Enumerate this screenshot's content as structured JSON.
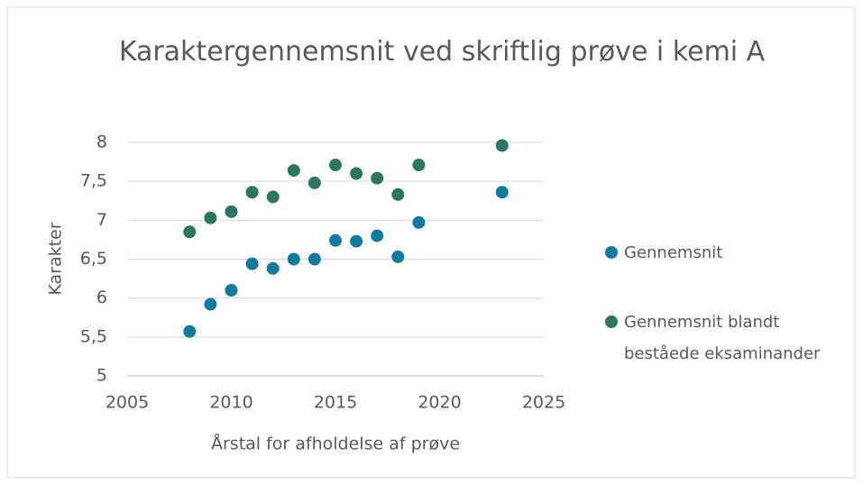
{
  "chart_data": {
    "type": "scatter",
    "title": "Karaktergennemsnit ved skriftlig prøve i kemi A",
    "xlabel": "Årstal for afholdelse af prøve",
    "ylabel": "Karakter",
    "xlim": [
      2005,
      2025
    ],
    "xticks": [
      2005,
      2010,
      2015,
      2020,
      2025
    ],
    "ylim": [
      5,
      8
    ],
    "yticks": [
      5,
      {
        "value": 5.5,
        "label": "5,5"
      },
      6,
      {
        "value": 6.5,
        "label": "6,5"
      },
      7,
      {
        "value": 7.5,
        "label": "7,5"
      },
      8
    ],
    "grid": true,
    "legend": "right",
    "series": [
      {
        "name": "Gennemsnit",
        "color": "#127a9c",
        "x": [
          2008,
          2009,
          2010,
          2011,
          2012,
          2013,
          2014,
          2015,
          2016,
          2017,
          2018,
          2019,
          2023
        ],
        "values": [
          5.57,
          5.92,
          6.1,
          6.44,
          6.38,
          6.5,
          6.5,
          6.74,
          6.73,
          6.8,
          6.53,
          6.97,
          7.36
        ]
      },
      {
        "name": "Gennemsnit blandt beståede eksaminander",
        "color": "#2e7562",
        "x": [
          2008,
          2009,
          2010,
          2011,
          2012,
          2013,
          2014,
          2015,
          2016,
          2017,
          2018,
          2019,
          2023
        ],
        "values": [
          6.85,
          7.03,
          7.11,
          7.36,
          7.3,
          7.64,
          7.48,
          7.71,
          7.6,
          7.54,
          7.33,
          7.71,
          7.96
        ]
      }
    ]
  }
}
